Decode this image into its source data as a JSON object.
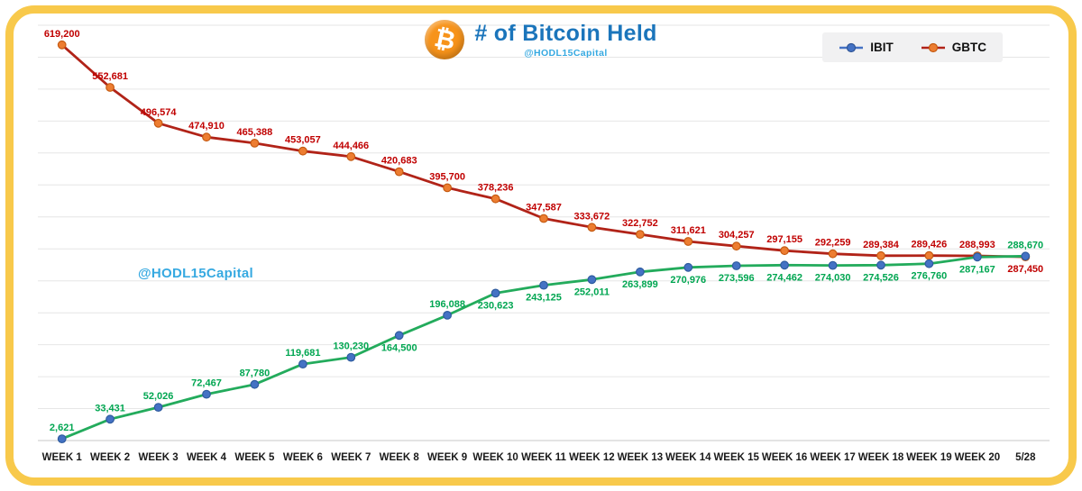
{
  "header": {
    "title": "# of Bitcoin Held",
    "watermark": "@HODL15Capital",
    "bitcoin_symbol": "₿"
  },
  "chart_watermark": "@HODL15Capital",
  "legend": [
    {
      "label": "IBIT",
      "line_color": "#4472C4",
      "marker_color": "#4472C4",
      "marker_stroke": "#2F5597"
    },
    {
      "label": "GBTC",
      "line_color": "#B12318",
      "marker_color": "#ED7D31",
      "marker_stroke": "#C55A11"
    }
  ],
  "chart_data": {
    "type": "line",
    "title": "# of Bitcoin Held",
    "xlabel": "",
    "ylabel": "",
    "grid": true,
    "legend_position": "top-right",
    "ylim": [
      0,
      650000
    ],
    "grid_step": 50000,
    "categories": [
      "WEEK 1",
      "WEEK 2",
      "WEEK 3",
      "WEEK 4",
      "WEEK 5",
      "WEEK 6",
      "WEEK 7",
      "WEEK 8",
      "WEEK 9",
      "WEEK 10",
      "WEEK 11",
      "WEEK 12",
      "WEEK 13",
      "WEEK 14",
      "WEEK 15",
      "WEEK 16",
      "WEEK 17",
      "WEEK 18",
      "WEEK 19",
      "WEEK 20",
      "5/28"
    ],
    "series": [
      {
        "name": "GBTC",
        "values": [
          619200,
          552681,
          496574,
          474910,
          465388,
          453057,
          444466,
          420683,
          395700,
          378236,
          347587,
          333672,
          322752,
          311621,
          304257,
          297155,
          292259,
          289384,
          289426,
          288993,
          287450
        ],
        "labels": [
          "619,200",
          "552,681",
          "496,574",
          "474,910",
          "465,388",
          "453,057",
          "444,466",
          "420,683",
          "395,700",
          "378,236",
          "347,587",
          "333,672",
          "322,752",
          "311,621",
          "304,257",
          "297,155",
          "292,259",
          "289,384",
          "289,426",
          "288,993",
          "287,450"
        ],
        "line_color": "#B12318",
        "marker_fill": "#ED7D31",
        "marker_stroke": "#C55A11",
        "label_color": "#C00000",
        "label_below_indices": [
          20
        ]
      },
      {
        "name": "IBIT",
        "values": [
          2621,
          33431,
          52026,
          72467,
          87780,
          119681,
          130230,
          164500,
          196088,
          230623,
          243125,
          252011,
          263899,
          270976,
          273596,
          274462,
          274030,
          274526,
          276760,
          287167,
          288670
        ],
        "labels": [
          "2,621",
          "33,431",
          "52,026",
          "72,467",
          "87,780",
          "119,681",
          "130,230",
          "164,500",
          "196,088",
          "230,623",
          "243,125",
          "252,011",
          "263,899",
          "270,976",
          "273,596",
          "274,462",
          "274,030",
          "274,526",
          "276,760",
          "287,167",
          "288,670"
        ],
        "line_color": "#23AB5C",
        "marker_fill": "#4472C4",
        "marker_stroke": "#2E5B9E",
        "label_color": "#00A651",
        "label_below_indices": [
          7,
          9,
          10,
          11,
          12,
          13,
          14,
          15,
          16,
          17,
          18,
          19
        ]
      }
    ]
  }
}
